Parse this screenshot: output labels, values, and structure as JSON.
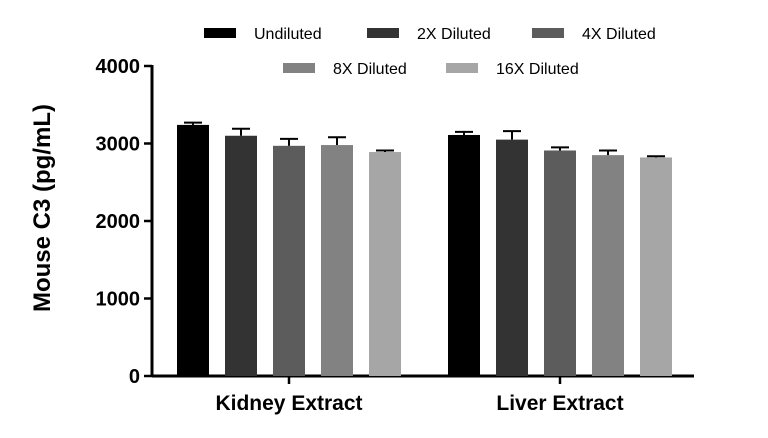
{
  "chart_data": {
    "type": "bar",
    "title": "",
    "xlabel": "",
    "ylabel": "Mouse C3 (pg/mL)",
    "ylim": [
      0,
      4000
    ],
    "yticks": [
      0,
      1000,
      2000,
      3000,
      4000
    ],
    "categories": [
      "Kidney Extract",
      "Liver Extract"
    ],
    "grid": false,
    "legend_position": "top",
    "series": [
      {
        "name": "Undiluted",
        "color": "#000000",
        "values": [
          3240,
          3110
        ],
        "errors": [
          30,
          40
        ]
      },
      {
        "name": "2X Diluted",
        "color": "#333333",
        "values": [
          3100,
          3050
        ],
        "errors": [
          90,
          110
        ]
      },
      {
        "name": "4X Diluted",
        "color": "#5c5c5c",
        "values": [
          2970,
          2910
        ],
        "errors": [
          90,
          40
        ]
      },
      {
        "name": "8X Diluted",
        "color": "#828282",
        "values": [
          2980,
          2850
        ],
        "errors": [
          100,
          60
        ]
      },
      {
        "name": "16X Diluted",
        "color": "#a6a6a6",
        "values": [
          2890,
          2820
        ],
        "errors": [
          20,
          15
        ]
      }
    ]
  }
}
